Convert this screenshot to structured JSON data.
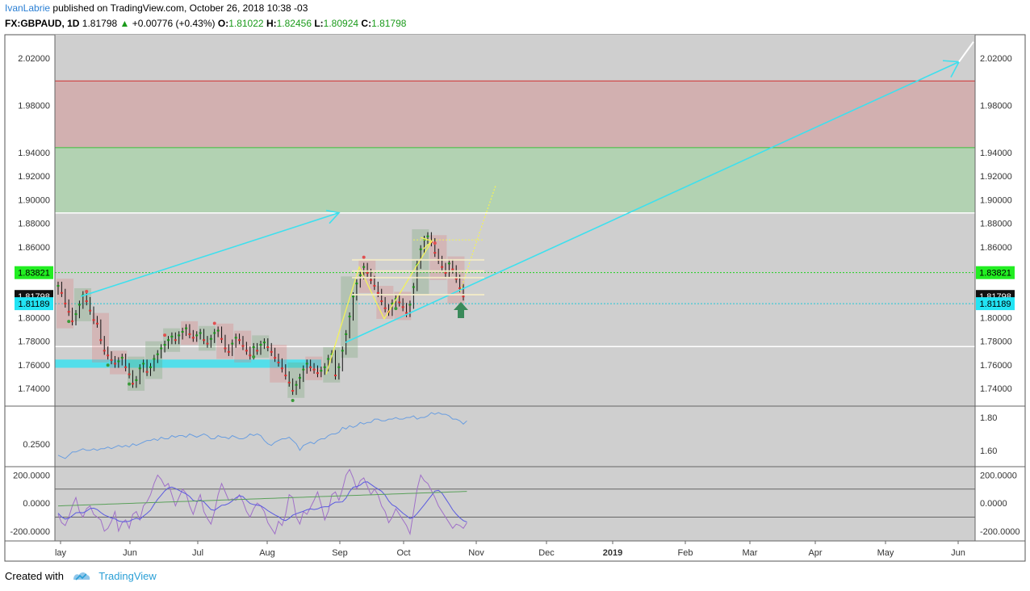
{
  "header": {
    "author": "IvanLabrie",
    "published_text": "published on TradingView.com, October 26, 2018 10:38 -03"
  },
  "symbol_bar": {
    "symbol": "FX:GBPAUD, 1D",
    "last": "1.81798",
    "change": "+0.00776 (+0.43%)",
    "o_label": "O:",
    "o_value": "1.81022",
    "h_label": "H:",
    "h_value": "1.82456",
    "l_label": "L:",
    "l_value": "1.80924",
    "c_label": "C:",
    "c_value": "1.81798"
  },
  "footer": {
    "created_with": "Created with",
    "brand": "TradingView"
  },
  "colors": {
    "panel_bg": "#cfcfcf",
    "red_zone": "#d2b0b0",
    "green_zone": "#b2d2b2",
    "cyan": "#3de0ee",
    "yellow": "#f2f25a",
    "up_candle": "#1a9a1a",
    "down_candle": "#e03030",
    "price_line": "#6a9ee0",
    "osc_purple": "#a070c8",
    "osc_blue": "#5a5ae0",
    "osc_green": "#5aa05a"
  },
  "chart_data": {
    "type": "candlestick",
    "symbol": "FX:GBPAUD",
    "timeframe": "1D",
    "y_ticks": [
      "2.02000",
      "1.98000",
      "1.94000",
      "1.92000",
      "1.90000",
      "1.88000",
      "1.86000",
      "1.80000",
      "1.78000",
      "1.76000",
      "1.74000"
    ],
    "ylim": [
      1.725,
      2.04
    ],
    "x_ticks": [
      "lay",
      "Jun",
      "Jul",
      "Aug",
      "Sep",
      "Oct",
      "Nov",
      "Dec",
      "2019",
      "Feb",
      "Mar",
      "Apr",
      "May",
      "Jun"
    ],
    "price_labels": [
      {
        "text": "1.83821",
        "value": 1.83821,
        "kind": "green"
      },
      {
        "text": "1.81798",
        "value": 1.81798,
        "kind": "black"
      },
      {
        "text": "1.81189",
        "value": 1.81189,
        "kind": "cyan"
      }
    ],
    "zones": {
      "red": [
        1.9442,
        2.0008
      ],
      "green": [
        1.8888,
        1.9442
      ]
    },
    "horizontal_lines": [
      1.8888,
      1.7755
    ],
    "closes": [
      1.827,
      1.821,
      1.812,
      1.805,
      1.797,
      1.803,
      1.811,
      1.819,
      1.814,
      1.806,
      1.798,
      1.795,
      1.781,
      1.772,
      1.768,
      1.764,
      1.761,
      1.763,
      1.766,
      1.758,
      1.752,
      1.744,
      1.747,
      1.757,
      1.761,
      1.754,
      1.758,
      1.765,
      1.769,
      1.774,
      1.777,
      1.781,
      1.784,
      1.781,
      1.785,
      1.788,
      1.791,
      1.786,
      1.783,
      1.785,
      1.787,
      1.781,
      1.778,
      1.782,
      1.787,
      1.789,
      1.782,
      1.774,
      1.771,
      1.778,
      1.783,
      1.781,
      1.776,
      1.772,
      1.768,
      1.775,
      1.772,
      1.777,
      1.779,
      1.775,
      1.771,
      1.766,
      1.762,
      1.757,
      1.751,
      1.745,
      1.738,
      1.743,
      1.749,
      1.756,
      1.761,
      1.758,
      1.756,
      1.753,
      1.755,
      1.758,
      1.765,
      1.769,
      1.751,
      1.758,
      1.772,
      1.786,
      1.801,
      1.818,
      1.829,
      1.836,
      1.843,
      1.838,
      1.832,
      1.827,
      1.821,
      1.814,
      1.808,
      1.805,
      1.812,
      1.816,
      1.813,
      1.809,
      1.804,
      1.811,
      1.826,
      1.845,
      1.858,
      1.866,
      1.869,
      1.864,
      1.855,
      1.849,
      1.843,
      1.838,
      1.846,
      1.841,
      1.833,
      1.825,
      1.818
    ],
    "indicator_1": {
      "y_ticks_left": [
        "0.2500"
      ],
      "y_ticks_right": [
        "1.80",
        "1.60"
      ],
      "ylim": [
        1.53,
        1.84
      ],
      "values": [
        1.57,
        1.56,
        1.55,
        1.57,
        1.59,
        1.59,
        1.6,
        1.61,
        1.6,
        1.6,
        1.61,
        1.6,
        1.61,
        1.61,
        1.62,
        1.61,
        1.62,
        1.63,
        1.62,
        1.63,
        1.62,
        1.64,
        1.63,
        1.64,
        1.65,
        1.66,
        1.66,
        1.67,
        1.66,
        1.68,
        1.67,
        1.67,
        1.69,
        1.68,
        1.69,
        1.69,
        1.68,
        1.7,
        1.69,
        1.68,
        1.69,
        1.7,
        1.69,
        1.67,
        1.67,
        1.69,
        1.68,
        1.68,
        1.67,
        1.69,
        1.68,
        1.67,
        1.67,
        1.68,
        1.7,
        1.69,
        1.7,
        1.69,
        1.66,
        1.64,
        1.63,
        1.65,
        1.66,
        1.67,
        1.67,
        1.68,
        1.66,
        1.64,
        1.6,
        1.63,
        1.64,
        1.65,
        1.64,
        1.66,
        1.67,
        1.67,
        1.69,
        1.7,
        1.7,
        1.71,
        1.74,
        1.73,
        1.75,
        1.74,
        1.75,
        1.77,
        1.76,
        1.77,
        1.77,
        1.79,
        1.79,
        1.78,
        1.78,
        1.79,
        1.79,
        1.8,
        1.79,
        1.79,
        1.8,
        1.8,
        1.81,
        1.79,
        1.8,
        1.8,
        1.81,
        1.83,
        1.82,
        1.83,
        1.82,
        1.82,
        1.81,
        1.79,
        1.79,
        1.78,
        1.76,
        1.78
      ]
    },
    "indicator_2": {
      "y_ticks": [
        "200.0000",
        "0.0000",
        "-200.0000"
      ],
      "ylim": [
        -270,
        260
      ],
      "levels": [
        100,
        -100
      ],
      "purple_series": [
        -80,
        -140,
        -160,
        -100,
        -20,
        40,
        -60,
        -100,
        -40,
        -20,
        -80,
        -100,
        -120,
        -200,
        -180,
        -130,
        -60,
        -200,
        -140,
        -120,
        -180,
        -80,
        -60,
        -120,
        -20,
        10,
        60,
        140,
        200,
        170,
        120,
        140,
        60,
        -20,
        40,
        100,
        70,
        -20,
        -80,
        0,
        60,
        -60,
        -110,
        -150,
        -60,
        60,
        140,
        80,
        20,
        30,
        20,
        60,
        10,
        -60,
        -100,
        -40,
        0,
        -20,
        -60,
        -140,
        -180,
        -220,
        -130,
        -160,
        -80,
        60,
        40,
        -100,
        -150,
        -60,
        -80,
        -30,
        20,
        80,
        -10,
        -120,
        -60,
        60,
        80,
        20,
        100,
        200,
        240,
        180,
        100,
        160,
        180,
        120,
        60,
        100,
        60,
        -20,
        -60,
        -140,
        -100,
        -40,
        -80,
        -120,
        -160,
        -220,
        -60,
        100,
        200,
        160,
        140,
        90,
        40,
        -20,
        -60,
        -100,
        -140,
        -180,
        -150,
        -160,
        -180,
        -140
      ]
    }
  }
}
